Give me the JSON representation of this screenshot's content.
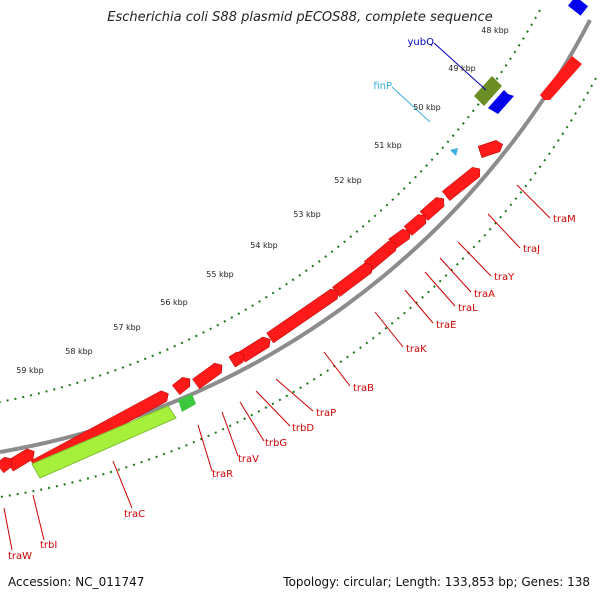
{
  "title": "Escherichia coli S88 plasmid pECOS88, complete sequence",
  "accession": "Accession: NC_011747",
  "summary": "Topology: circular; Length: 133,853 bp; Genes: 138",
  "colors": {
    "backbone": "#8c8c8c",
    "cds_forward": "#ff1a1a",
    "cds_reverse": "#ee0000",
    "trac": "#a6f03c",
    "traR_small": "#3cc83c",
    "yubQ": "#0000ee",
    "finP": "#6b8e23",
    "ticks": "#1a7a1a",
    "gene_label": "#cc0000",
    "finP_label": "#39b0e0",
    "yubQ_label": "#0000bb"
  },
  "kbp_labels": [
    "48 kbp",
    "49 kbp",
    "50 kbp",
    "51 kbp",
    "52 kbp",
    "53 kbp",
    "54 kbp",
    "55 kbp",
    "56 kbp",
    "57 kbp",
    "58 kbp",
    "59 kbp"
  ],
  "gene_labels": [
    {
      "name": "yubQ",
      "color": "yubQ"
    },
    {
      "name": "finP",
      "color": "finP"
    },
    {
      "name": "traM",
      "color": "gene"
    },
    {
      "name": "traJ",
      "color": "gene"
    },
    {
      "name": "traY",
      "color": "gene"
    },
    {
      "name": "traA",
      "color": "gene"
    },
    {
      "name": "traL",
      "color": "gene"
    },
    {
      "name": "traE",
      "color": "gene"
    },
    {
      "name": "traK",
      "color": "gene"
    },
    {
      "name": "traB",
      "color": "gene"
    },
    {
      "name": "traP",
      "color": "gene"
    },
    {
      "name": "trbD",
      "color": "gene"
    },
    {
      "name": "trbG",
      "color": "gene"
    },
    {
      "name": "traV",
      "color": "gene"
    },
    {
      "name": "traR",
      "color": "gene"
    },
    {
      "name": "traC",
      "color": "gene"
    },
    {
      "name": "trbI",
      "color": "gene"
    },
    {
      "name": "traW",
      "color": "gene"
    }
  ]
}
